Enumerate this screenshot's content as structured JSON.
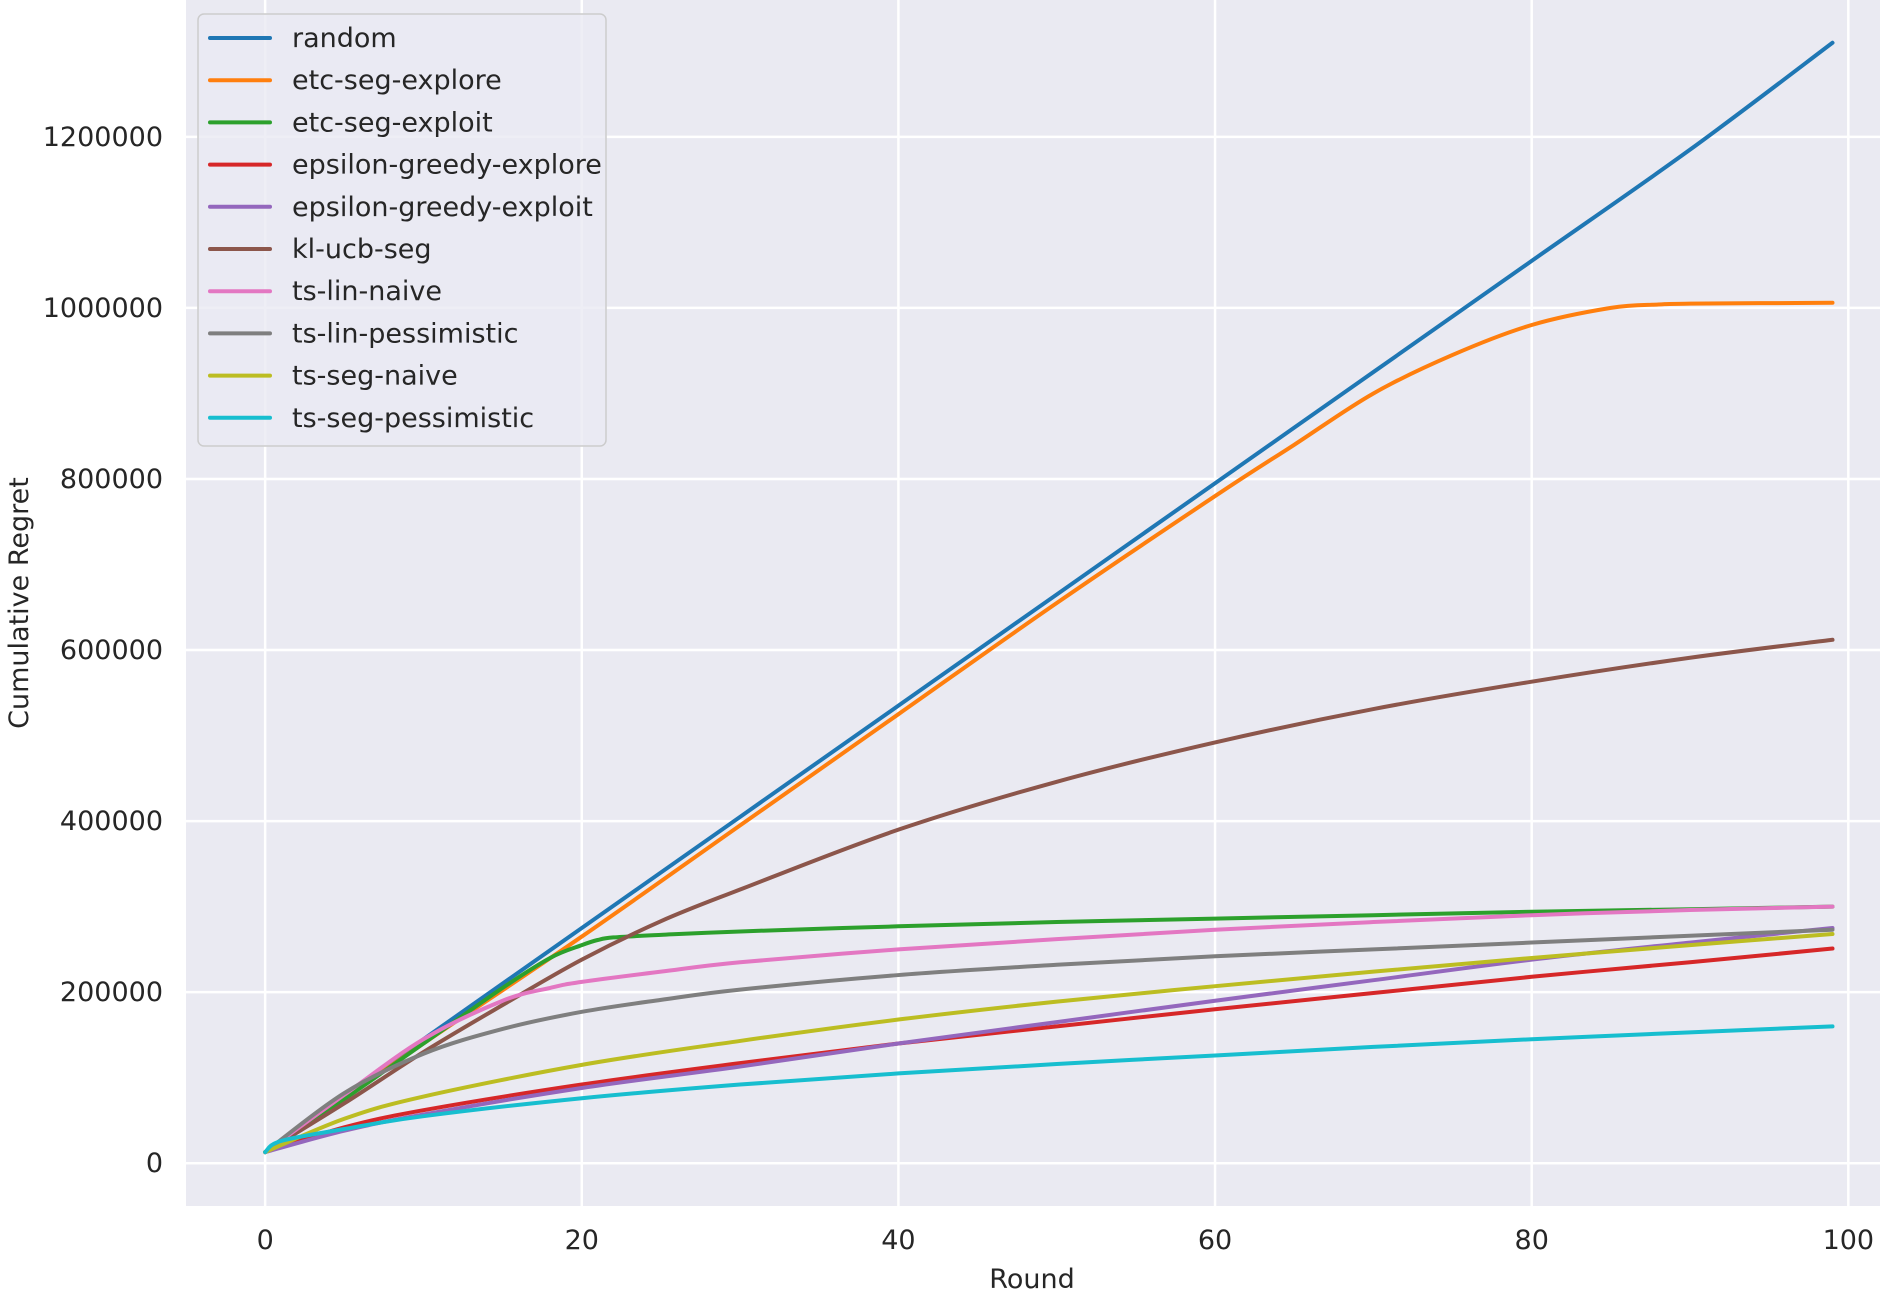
{
  "chart_data": {
    "type": "line",
    "title": "",
    "xlabel": "Round",
    "ylabel": "Cumulative Regret",
    "xlim": [
      -5,
      102
    ],
    "ylim": [
      -50000,
      1360000
    ],
    "xticks": [
      0,
      20,
      40,
      60,
      80,
      100
    ],
    "yticks": [
      0,
      200000,
      400000,
      600000,
      800000,
      1000000,
      1200000
    ],
    "xtick_labels": [
      "0",
      "20",
      "40",
      "60",
      "80",
      "100"
    ],
    "ytick_labels": [
      "0",
      "200000",
      "400000",
      "600000",
      "800000",
      "1000000",
      "1200000"
    ],
    "grid": true,
    "background": "#eaeaf2",
    "legend_position": "top-left",
    "series": [
      {
        "name": "random",
        "color": "#1f77b4",
        "x": [
          0,
          10,
          20,
          30,
          40,
          50,
          60,
          70,
          80,
          90,
          99
        ],
        "y": [
          13000,
          145000,
          275000,
          405000,
          535000,
          665000,
          795000,
          925000,
          1055000,
          1185000,
          1310000
        ]
      },
      {
        "name": "etc-seg-explore",
        "color": "#ff7f0e",
        "x": [
          0,
          10,
          20,
          30,
          40,
          50,
          60,
          65,
          70,
          75,
          80,
          85,
          88,
          90,
          99
        ],
        "y": [
          13000,
          140000,
          265000,
          395000,
          525000,
          655000,
          780000,
          840000,
          900000,
          945000,
          980000,
          1000000,
          1004000,
          1005000,
          1006000
        ]
      },
      {
        "name": "etc-seg-exploit",
        "color": "#2ca02c",
        "x": [
          0,
          5,
          10,
          15,
          18,
          20,
          21,
          22,
          25,
          30,
          40,
          50,
          60,
          70,
          80,
          90,
          99
        ],
        "y": [
          13000,
          75000,
          140000,
          205000,
          240000,
          255000,
          261000,
          264000,
          267000,
          271000,
          277000,
          282000,
          286000,
          290000,
          294000,
          297000,
          300000
        ]
      },
      {
        "name": "epsilon-greedy-explore",
        "color": "#d62728",
        "x": [
          0,
          5,
          10,
          20,
          30,
          40,
          50,
          60,
          70,
          80,
          90,
          99
        ],
        "y": [
          13000,
          42000,
          62000,
          92000,
          117000,
          140000,
          160000,
          180000,
          199000,
          218000,
          235000,
          251000
        ]
      },
      {
        "name": "epsilon-greedy-exploit",
        "color": "#9467bd",
        "x": [
          0,
          5,
          10,
          20,
          30,
          40,
          50,
          60,
          70,
          80,
          90,
          99
        ],
        "y": [
          13000,
          38000,
          57000,
          88000,
          113000,
          140000,
          165000,
          190000,
          214000,
          238000,
          258000,
          275000
        ]
      },
      {
        "name": "kl-ucb-seg",
        "color": "#8c564b",
        "x": [
          0,
          5,
          10,
          15,
          20,
          25,
          30,
          40,
          50,
          60,
          70,
          80,
          90,
          99
        ],
        "y": [
          13000,
          70000,
          130000,
          185000,
          238000,
          283000,
          320000,
          390000,
          446000,
          492000,
          531000,
          563000,
          591000,
          612000
        ]
      },
      {
        "name": "ts-lin-naive",
        "color": "#e377c2",
        "x": [
          0,
          5,
          10,
          15,
          18,
          20,
          25,
          30,
          40,
          50,
          60,
          70,
          80,
          90,
          99
        ],
        "y": [
          13000,
          80000,
          145000,
          190000,
          205000,
          212000,
          224000,
          235000,
          250000,
          262000,
          273000,
          282000,
          290000,
          296000,
          300000
        ]
      },
      {
        "name": "ts-lin-pessimistic",
        "color": "#7f7f7f",
        "x": [
          0,
          5,
          10,
          15,
          20,
          25,
          30,
          40,
          50,
          60,
          70,
          80,
          90,
          99
        ],
        "y": [
          13000,
          82000,
          128000,
          157000,
          177000,
          191000,
          203000,
          220000,
          232000,
          242000,
          250000,
          258000,
          266000,
          273000
        ]
      },
      {
        "name": "ts-seg-naive",
        "color": "#bcbd22",
        "x": [
          0,
          5,
          10,
          20,
          30,
          40,
          50,
          60,
          70,
          80,
          90,
          99
        ],
        "y": [
          13000,
          52000,
          78000,
          115000,
          143000,
          168000,
          189000,
          207000,
          224000,
          240000,
          255000,
          268000
        ]
      },
      {
        "name": "ts-seg-pessimistic",
        "color": "#17becf",
        "x": [
          0,
          1,
          5,
          10,
          20,
          30,
          40,
          50,
          60,
          70,
          80,
          90,
          99
        ],
        "y": [
          13000,
          26000,
          40000,
          55000,
          76000,
          92000,
          105000,
          116000,
          126000,
          136000,
          145000,
          153000,
          160000
        ]
      }
    ]
  }
}
